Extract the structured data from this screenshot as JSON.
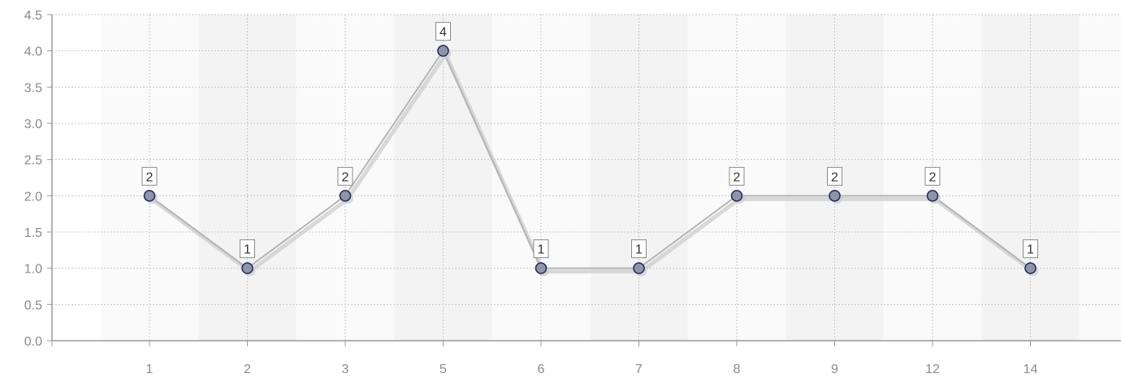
{
  "chart_data": {
    "type": "line",
    "categories": [
      "1",
      "2",
      "3",
      "5",
      "6",
      "7",
      "8",
      "9",
      "12",
      "14"
    ],
    "series": [
      {
        "values": [
          2,
          1,
          2,
          4,
          1,
          1,
          2,
          2,
          2,
          1
        ],
        "color": "#2f3a73"
      }
    ],
    "data_labels": [
      "2",
      "1",
      "2",
      "4",
      "1",
      "1",
      "2",
      "2",
      "2",
      "1"
    ],
    "y_ticks": [
      "0.0",
      "0.5",
      "1.0",
      "1.5",
      "2.0",
      "2.5",
      "3.0",
      "3.5",
      "4.0",
      "4.5"
    ],
    "ylim": [
      0,
      4.5
    ],
    "grid": true,
    "legend": "none",
    "colors": {
      "line": "#b5b5b5",
      "marker_fill": "#8f94a8",
      "marker_stroke": "#1f2a5c",
      "band_light": "#fafafa",
      "band_dark": "#f3f3f3",
      "grid": "#c8c8c8",
      "axis": "#9a9a9a"
    }
  }
}
